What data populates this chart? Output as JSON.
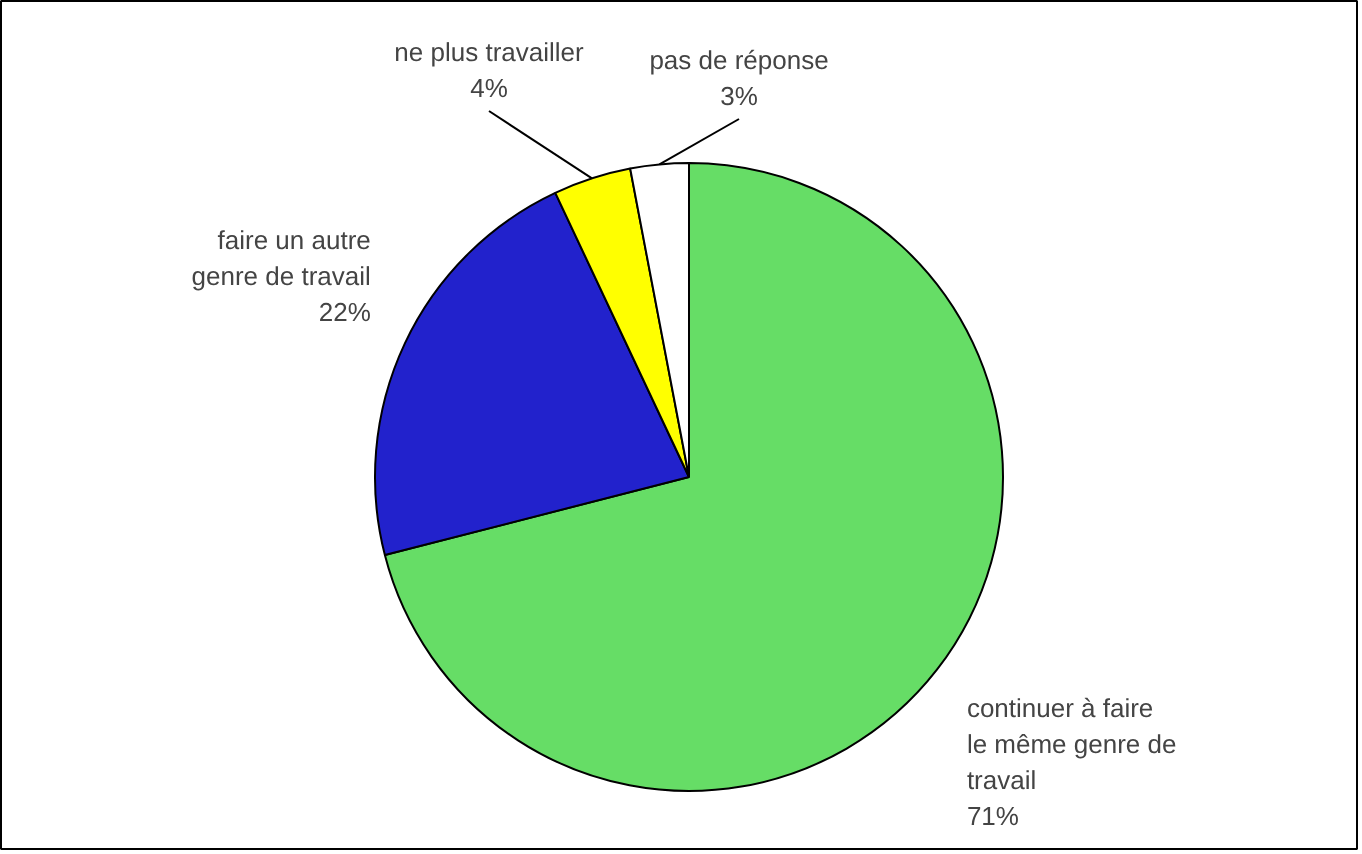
{
  "chart_data": {
    "type": "pie",
    "categories": [
      "continuer à faire le même genre de travail",
      "faire un autre genre de travail",
      "ne plus travailler",
      "pas de réponse"
    ],
    "values": [
      71,
      22,
      4,
      3
    ],
    "colors": [
      "#66dd66",
      "#2222cc",
      "#ffff00",
      "#ffffff"
    ],
    "value_labels": [
      "71%",
      "22%",
      "4%",
      "3%"
    ]
  }
}
